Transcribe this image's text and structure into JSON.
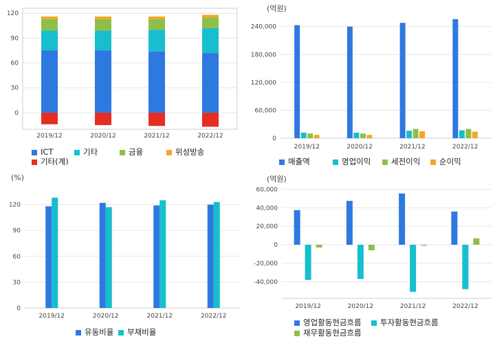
{
  "chart_data": [
    {
      "id": "sales-composition",
      "type": "bar",
      "stacked": true,
      "unit": "",
      "categories": [
        "2019/12",
        "2020/12",
        "2021/12",
        "2022/12"
      ],
      "series": [
        {
          "name": "ICT",
          "color": "#2e79e0",
          "values": [
            75,
            75,
            74,
            72
          ]
        },
        {
          "name": "기타",
          "color": "#17bece",
          "values": [
            24,
            24,
            26,
            30
          ]
        },
        {
          "name": "금융",
          "color": "#8fbf48",
          "values": [
            14,
            14,
            13,
            13
          ]
        },
        {
          "name": "위성방송",
          "color": "#f5a623",
          "values": [
            3,
            3,
            3,
            3
          ]
        },
        {
          "name": "기타(계)",
          "color": "#e52d22",
          "values": [
            -14,
            -15,
            -16,
            -17
          ]
        }
      ],
      "ylim": [
        -20,
        126
      ],
      "yticks": [
        0,
        30,
        60,
        90,
        120
      ],
      "ytick_labels": [
        "0",
        "30",
        "60",
        "90",
        "120"
      ],
      "grid": true,
      "legend_position": "bottom"
    },
    {
      "id": "income",
      "type": "bar",
      "unit": "(억원)",
      "categories": [
        "2019/12",
        "2020/12",
        "2021/12",
        "2022/12"
      ],
      "series": [
        {
          "name": "매출액",
          "color": "#2e79e0",
          "values": [
            243000,
            240000,
            248000,
            256000
          ]
        },
        {
          "name": "영업이익",
          "color": "#17bece",
          "values": [
            12000,
            12000,
            16000,
            17000
          ]
        },
        {
          "name": "세전이익",
          "color": "#8fbf48",
          "values": [
            10000,
            10000,
            20000,
            20000
          ]
        },
        {
          "name": "순이익",
          "color": "#f5a623",
          "values": [
            7000,
            7000,
            15000,
            14000
          ]
        }
      ],
      "ylim": [
        0,
        275000
      ],
      "yticks": [
        0,
        60000,
        120000,
        180000,
        240000
      ],
      "ytick_labels": [
        "0",
        "60,000",
        "120,000",
        "180,000",
        "240,000"
      ],
      "grid": true,
      "legend_position": "bottom"
    },
    {
      "id": "ratios",
      "type": "bar",
      "unit": "(%)",
      "categories": [
        "2019/12",
        "2020/12",
        "2021/12",
        "2022/12"
      ],
      "series": [
        {
          "name": "유동비율",
          "color": "#2e79e0",
          "values": [
            118,
            122,
            119,
            120
          ]
        },
        {
          "name": "부채비율",
          "color": "#17bece",
          "values": [
            128,
            117,
            125,
            123
          ]
        }
      ],
      "ylim": [
        0,
        142
      ],
      "yticks": [
        0,
        30,
        60,
        90,
        120
      ],
      "ytick_labels": [
        "0",
        "30",
        "60",
        "90",
        "120"
      ],
      "grid": true,
      "legend_position": "bottom"
    },
    {
      "id": "cashflow",
      "type": "bar",
      "unit": "(억원)",
      "categories": [
        "2019/12",
        "2020/12",
        "2021/12",
        "2022/12"
      ],
      "series": [
        {
          "name": "영업활동현금흐름",
          "color": "#2e79e0",
          "values": [
            37500,
            47500,
            55500,
            36000
          ]
        },
        {
          "name": "투자활동현금흐름",
          "color": "#17bece",
          "values": [
            -38000,
            -37000,
            -51000,
            -48000
          ]
        },
        {
          "name": "재무활동현금흐름",
          "color": "#8fbf48",
          "values": [
            -3000,
            -6000,
            -1000,
            7000
          ]
        }
      ],
      "ylim": [
        -58000,
        64000
      ],
      "yticks": [
        -40000,
        -20000,
        0,
        20000,
        40000,
        60000
      ],
      "ytick_labels": [
        "-40,000",
        "-20,000",
        "0",
        "20,000",
        "40,000",
        "60,000"
      ],
      "grid": true,
      "legend_position": "bottom"
    }
  ]
}
